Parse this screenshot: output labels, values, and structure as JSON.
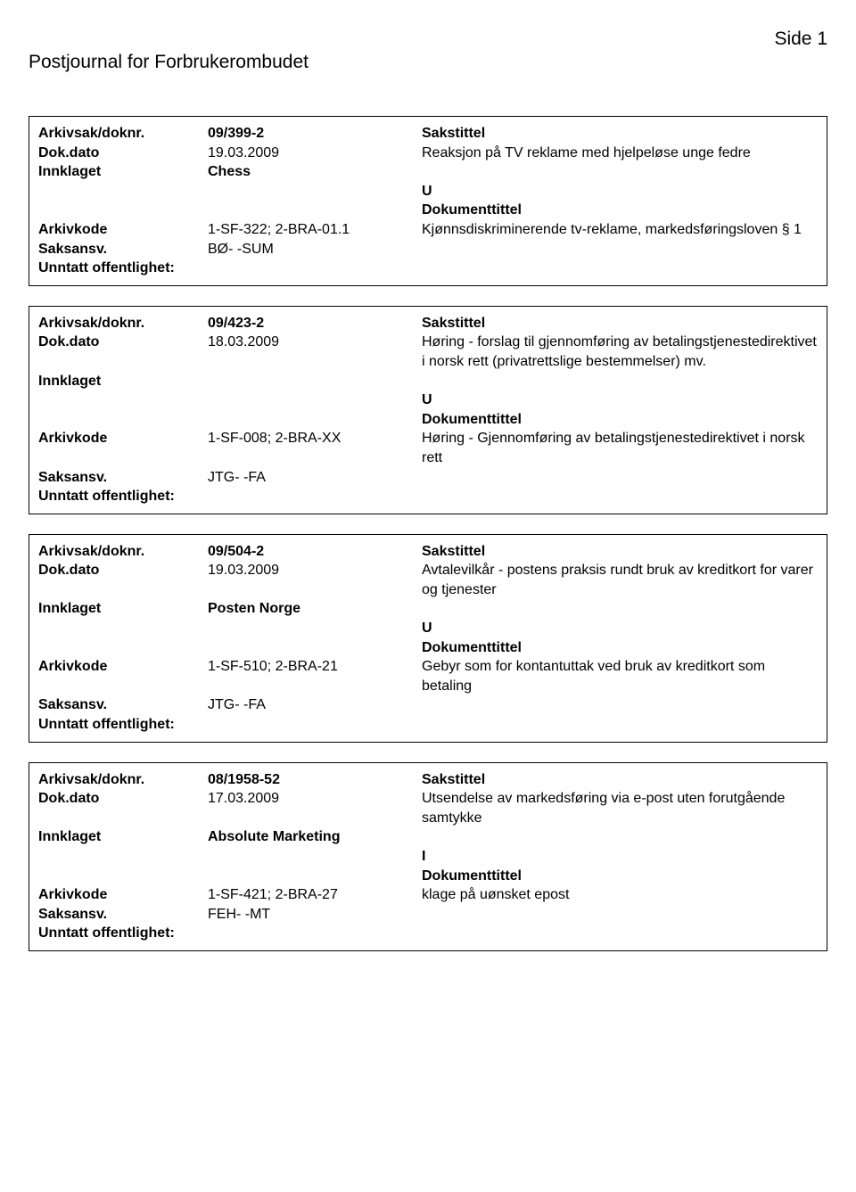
{
  "page": {
    "header_left": "Postjournal for Forbrukerombudet",
    "header_right": "Side 1"
  },
  "labels": {
    "arkivsak": "Arkivsak/doknr.",
    "dokdato": "Dok.dato",
    "innklaget": "Innklaget",
    "arkivkode": "Arkivkode",
    "saksansv": "Saksansv.",
    "unntatt": "Unntatt offentlighet:",
    "sakstittel": "Sakstittel",
    "dokumenttittel": "Dokumenttittel"
  },
  "entries": [
    {
      "arkivsak": "09/399-2",
      "dokdato": "19.03.2009",
      "sakstittel": "Reaksjon på TV reklame med hjelpeløse unge fedre",
      "innklaget": "Chess",
      "doc_type": "U",
      "arkivkode": "1-SF-322; 2-BRA-01.1",
      "dokumenttittel": "Kjønnsdiskriminerende tv-reklame, markedsføringsloven § 1",
      "saksansv": "BØ- -SUM",
      "unntatt": ""
    },
    {
      "arkivsak": "09/423-2",
      "dokdato": "18.03.2009",
      "sakstittel": "Høring - forslag til gjennomføring av betalingstjenestedirektivet i norsk rett (privatrettslige bestemmelser) mv.",
      "innklaget": "",
      "doc_type": "U",
      "arkivkode": "1-SF-008; 2-BRA-XX",
      "dokumenttittel": "Høring - Gjennomføring av betalingstjenestedirektivet i norsk rett",
      "saksansv": "JTG- -FA",
      "unntatt": ""
    },
    {
      "arkivsak": "09/504-2",
      "dokdato": "19.03.2009",
      "sakstittel": "Avtalevilkår - postens praksis rundt bruk av kreditkort for varer og tjenester",
      "innklaget": "Posten Norge",
      "doc_type": "U",
      "arkivkode": "1-SF-510; 2-BRA-21",
      "dokumenttittel": "Gebyr som for kontantuttak ved bruk av kreditkort som betaling",
      "saksansv": "JTG- -FA",
      "unntatt": ""
    },
    {
      "arkivsak": "08/1958-52",
      "dokdato": "17.03.2009",
      "sakstittel": "Utsendelse av markedsføring via e-post uten forutgående samtykke",
      "innklaget": "Absolute Marketing",
      "doc_type": "I",
      "arkivkode": "1-SF-421; 2-BRA-27",
      "dokumenttittel": "klage på uønsket epost",
      "saksansv": "FEH- -MT",
      "unntatt": ""
    }
  ]
}
